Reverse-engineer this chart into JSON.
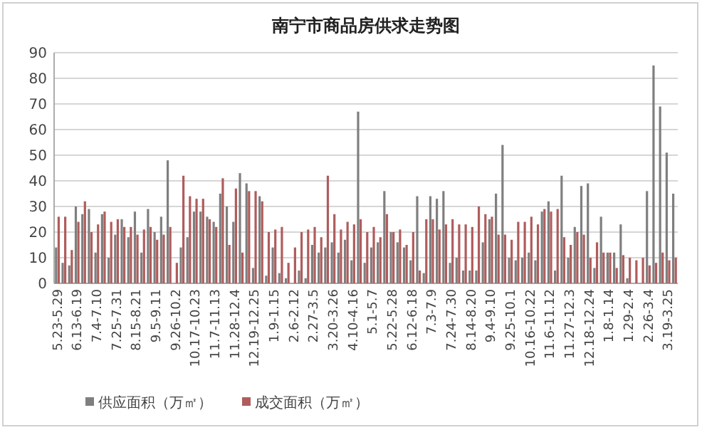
{
  "chart_data": {
    "type": "bar",
    "title": "南宁市商品房供求走势图",
    "categories": [
      "5.23-5.29",
      null,
      null,
      "6.13-6.19",
      null,
      null,
      "7.4-7.10",
      null,
      null,
      "7.25-7.31",
      null,
      null,
      "8.15-8.21",
      null,
      null,
      "9.5-9.11",
      null,
      null,
      "9.26-10.2",
      null,
      null,
      "10.17-10.23",
      null,
      null,
      "11.7-11.13",
      null,
      null,
      "11.28-12.4",
      null,
      null,
      "12.19-12.25",
      null,
      null,
      "1.9-1.15",
      null,
      null,
      "2.6-2.12",
      null,
      null,
      "2.27-3.5",
      null,
      null,
      "3.20-3.26",
      null,
      null,
      "4.10-4.16",
      null,
      null,
      "5.1-5.7",
      null,
      null,
      "5.22-5.28",
      null,
      null,
      "6.12-6.18",
      null,
      null,
      "7.3-7.9",
      null,
      null,
      "7.24-7.30",
      null,
      null,
      "8.14-8.20",
      null,
      null,
      "9.4-9.10",
      null,
      null,
      "9.25-10.1",
      null,
      null,
      "10.16-10.22",
      null,
      null,
      "11.6-11.12",
      null,
      null,
      "11.27-12.3",
      null,
      null,
      "12.18-12.24",
      null,
      null,
      "1.8-1.14",
      null,
      null,
      "1.29-2.4",
      null,
      null,
      "2.26-3.4",
      null,
      null,
      "3.19-3.25",
      null
    ],
    "series": [
      {
        "name": "供应面积（万㎡）",
        "color": "#7f7f7f",
        "values": [
          14,
          8,
          7,
          30,
          27,
          29,
          12,
          27,
          10,
          19,
          25,
          18,
          28,
          12,
          29,
          20,
          26,
          48,
          0,
          14,
          18,
          28,
          28,
          26,
          24,
          35,
          30,
          24,
          43,
          39,
          6,
          34,
          3,
          14,
          4,
          2,
          0,
          5,
          2,
          15,
          12,
          14,
          16,
          12,
          17,
          9,
          67,
          8,
          14,
          16,
          36,
          20,
          16,
          14,
          9,
          34,
          4,
          34,
          33,
          36,
          8,
          10,
          5,
          5,
          5,
          16,
          25,
          35,
          54,
          10,
          9,
          10,
          12,
          9,
          28,
          32,
          5,
          42,
          10,
          22,
          38,
          39,
          6,
          26,
          12,
          12,
          23,
          2,
          0,
          0,
          36,
          85,
          69,
          51,
          35
        ]
      },
      {
        "name": "成交面积（万㎡）",
        "color": "#b05c5c",
        "values": [
          26,
          26,
          13,
          24,
          32,
          20,
          23,
          28,
          24,
          25,
          22,
          22,
          19,
          21,
          22,
          17,
          19,
          22,
          8,
          42,
          34,
          33,
          33,
          25,
          22,
          41,
          15,
          37,
          12,
          36,
          36,
          32,
          20,
          21,
          22,
          8,
          14,
          20,
          21,
          22,
          18,
          42,
          27,
          21,
          24,
          23,
          25,
          20,
          22,
          18,
          27,
          20,
          21,
          15,
          20,
          5,
          25,
          25,
          21,
          23,
          25,
          23,
          23,
          22,
          30,
          27,
          26,
          19,
          19,
          17,
          24,
          24,
          26,
          23,
          29,
          28,
          29,
          18,
          15,
          20,
          19,
          10,
          16,
          12,
          12,
          6,
          11,
          10,
          9,
          10,
          7,
          8,
          12,
          9,
          10
        ]
      }
    ],
    "ylim": [
      0,
      90
    ],
    "yticks": [
      0,
      10,
      20,
      30,
      40,
      50,
      60,
      70,
      80,
      90
    ],
    "grid": "y",
    "legend": "bottom"
  }
}
